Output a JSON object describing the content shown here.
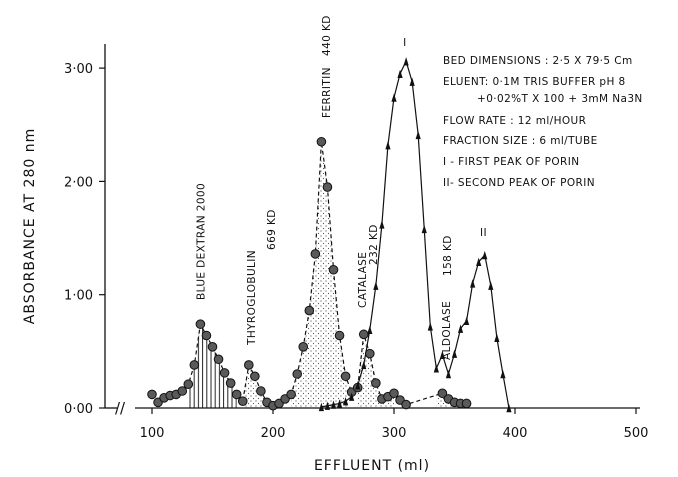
{
  "chart_data": {
    "type": "line",
    "xlabel": "EFFLUENT  (ml)",
    "ylabel": "ABSORBANCE AT 280 nm",
    "xlim": [
      0,
      500
    ],
    "ylim": [
      0,
      3.2
    ],
    "x_ticks": [
      "100",
      "200",
      "300",
      "400",
      "500"
    ],
    "y_ticks": [
      "0·00",
      "1·00",
      "2·00",
      "3·00"
    ],
    "axis_break": "//",
    "grid": false,
    "series": [
      {
        "marker": "circle",
        "line_style": "dashed",
        "x": [
          100,
          105,
          110,
          115,
          120,
          125,
          130,
          135,
          140,
          145,
          150,
          155,
          160,
          165,
          170,
          175,
          180,
          185,
          190,
          195,
          200,
          205,
          210,
          215,
          220,
          225,
          230,
          235,
          240,
          245,
          250,
          255,
          260,
          265,
          270,
          275,
          280,
          285,
          290,
          295,
          300,
          305,
          310,
          340,
          345,
          350,
          355,
          360
        ],
        "y": [
          0.12,
          0.05,
          0.09,
          0.11,
          0.12,
          0.15,
          0.21,
          0.38,
          0.74,
          0.64,
          0.54,
          0.43,
          0.31,
          0.22,
          0.12,
          0.06,
          0.38,
          0.28,
          0.15,
          0.05,
          0.02,
          0.04,
          0.08,
          0.12,
          0.3,
          0.54,
          0.86,
          1.36,
          2.35,
          1.95,
          1.22,
          0.64,
          0.28,
          0.14,
          0.18,
          0.65,
          0.48,
          0.22,
          0.08,
          0.1,
          0.13,
          0.07,
          0.03,
          0.13,
          0.08,
          0.05,
          0.04,
          0.04
        ]
      },
      {
        "name": "I",
        "marker": "triangle",
        "line_style": "solid",
        "x": [
          240,
          245,
          250,
          255,
          260,
          265,
          270,
          275,
          280,
          285,
          290,
          295,
          300,
          305,
          310,
          315,
          320,
          325,
          330,
          335,
          340,
          345,
          350,
          355,
          360,
          365,
          370,
          375,
          380,
          385,
          390,
          395
        ],
        "y": [
          0.01,
          0.02,
          0.03,
          0.04,
          0.06,
          0.1,
          0.2,
          0.38,
          0.69,
          1.08,
          1.62,
          2.32,
          2.74,
          2.95,
          3.06,
          2.88,
          2.41,
          1.58,
          0.72,
          0.35,
          0.47,
          0.3,
          0.48,
          0.7,
          0.77,
          1.1,
          1.29,
          1.35,
          1.08,
          0.62,
          0.3,
          0.0
        ]
      }
    ],
    "shading": [
      {
        "style": "vertical-hatch",
        "x_range": [
          130,
          170
        ]
      },
      {
        "style": "stipple",
        "x_range": [
          175,
          195
        ]
      },
      {
        "style": "stipple",
        "x_range": [
          215,
          262
        ]
      },
      {
        "style": "stipple",
        "x_range": [
          270,
          300
        ]
      },
      {
        "style": "stipple",
        "x_range": [
          335,
          362
        ]
      }
    ],
    "annotations": [
      {
        "id": "blue-dextran",
        "text": "BLUE DEXTRAN 2000",
        "x": 140,
        "rotated": true
      },
      {
        "id": "thyroglobulin",
        "text": "THYROGLOBULIN",
        "x": 182,
        "rotated": true
      },
      {
        "id": "thyroglobulin-mw",
        "text": "669 KD",
        "x": 181,
        "rotated": true
      },
      {
        "id": "ferritin",
        "text": "FERRITIN",
        "x": 244,
        "rotated": true
      },
      {
        "id": "ferritin-mw",
        "text": "440 KD",
        "x": 244,
        "rotated": true
      },
      {
        "id": "catalase",
        "text": "CATALASE",
        "x": 276,
        "rotated": true
      },
      {
        "id": "catalase-mw",
        "text": "232 KD",
        "x": 281,
        "rotated": true
      },
      {
        "id": "aldolase",
        "text": "ALDOLASE",
        "x": 344,
        "rotated": true
      },
      {
        "id": "aldolase-mw",
        "text": "158 KD",
        "x": 344,
        "rotated": true
      },
      {
        "id": "peak-1",
        "text": "I",
        "x": 309
      },
      {
        "id": "peak-2",
        "text": "II",
        "x": 374
      }
    ],
    "info_lines": [
      "BED DIMENSIONS : 2·5 X 79·5 Cm",
      "ELUENT: 0·1M TRIS BUFFER pH 8",
      "+0·02%T X 100 + 3mM Na3N",
      "FLOW RATE : 12 ml/HOUR",
      "FRACTION SIZE : 6 ml/TUBE",
      "I - FIRST PEAK OF PORIN",
      "II- SECOND PEAK OF PORIN"
    ]
  }
}
